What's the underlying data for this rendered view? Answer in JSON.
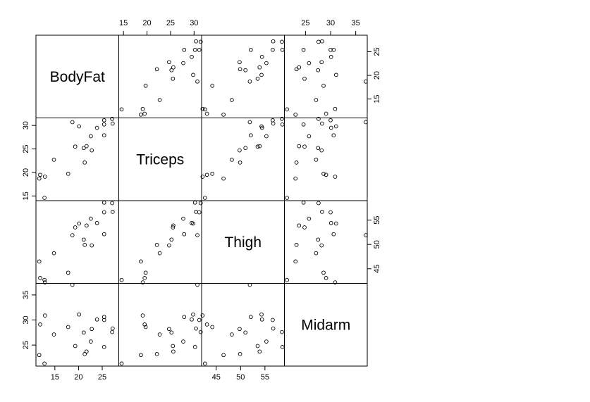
{
  "chart_data": {
    "type": "scatter",
    "title": "",
    "grid": false,
    "variables": [
      {
        "name": "BodyFat",
        "range": [
          11.0,
          28.5
        ],
        "ticks": [
          15,
          20,
          25
        ]
      },
      {
        "name": "Triceps",
        "range": [
          14.0,
          31.6
        ],
        "ticks": [
          15,
          20,
          25,
          30
        ]
      },
      {
        "name": "Thigh",
        "range": [
          42.0,
          59.0
        ],
        "ticks": [
          45,
          50,
          55
        ]
      },
      {
        "name": "Midarm",
        "range": [
          20.8,
          37.3
        ],
        "ticks": [
          25,
          30,
          35
        ]
      }
    ],
    "observations": {
      "BodyFat": [
        11.9,
        22.8,
        18.7,
        20.1,
        12.9,
        21.7,
        27.1,
        25.4,
        21.3,
        19.3,
        25.4,
        27.2,
        11.7,
        17.8,
        12.8,
        23.9,
        22.6,
        25.4,
        14.8,
        21.1
      ],
      "Triceps": [
        19.5,
        24.7,
        30.7,
        29.8,
        19.1,
        25.6,
        31.4,
        27.9,
        22.1,
        25.5,
        31.1,
        30.4,
        18.7,
        19.7,
        14.6,
        29.5,
        27.7,
        30.2,
        22.7,
        25.2
      ],
      "Thigh": [
        43.1,
        49.8,
        51.9,
        54.3,
        42.2,
        53.9,
        58.5,
        52.1,
        49.9,
        53.5,
        56.6,
        56.7,
        46.5,
        44.2,
        42.7,
        54.4,
        55.3,
        58.6,
        48.2,
        51.0
      ],
      "Midarm": [
        29.1,
        28.2,
        37.0,
        31.1,
        30.9,
        23.7,
        27.6,
        30.6,
        23.2,
        24.8,
        30.0,
        28.3,
        23.0,
        28.6,
        21.3,
        30.1,
        25.7,
        24.6,
        27.1,
        27.5
      ]
    }
  }
}
